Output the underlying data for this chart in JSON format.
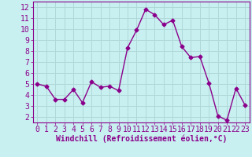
{
  "x": [
    0,
    1,
    2,
    3,
    4,
    5,
    6,
    7,
    8,
    9,
    10,
    11,
    12,
    13,
    14,
    15,
    16,
    17,
    18,
    19,
    20,
    21,
    22,
    23
  ],
  "y": [
    5.0,
    4.8,
    3.6,
    3.6,
    4.5,
    3.3,
    5.2,
    4.7,
    4.8,
    4.4,
    8.3,
    9.9,
    11.8,
    11.3,
    10.4,
    10.8,
    8.4,
    7.4,
    7.5,
    5.1,
    2.1,
    1.7,
    4.6,
    3.1
  ],
  "line_color": "#8b008b",
  "marker": "D",
  "marker_size": 2.5,
  "bg_color": "#c8f0f0",
  "grid_color": "#b0d8d8",
  "axis_color": "#8b008b",
  "tick_color": "#8b008b",
  "xlabel": "Windchill (Refroidissement éolien,°C)",
  "xlabel_fontsize": 7,
  "xlim": [
    -0.5,
    23.5
  ],
  "ylim": [
    1.5,
    12.5
  ],
  "yticks": [
    2,
    3,
    4,
    5,
    6,
    7,
    8,
    9,
    10,
    11,
    12
  ],
  "xticks": [
    0,
    1,
    2,
    3,
    4,
    5,
    6,
    7,
    8,
    9,
    10,
    11,
    12,
    13,
    14,
    15,
    16,
    17,
    18,
    19,
    20,
    21,
    22,
    23
  ],
  "tick_fontsize": 7,
  "line_width": 1.0
}
